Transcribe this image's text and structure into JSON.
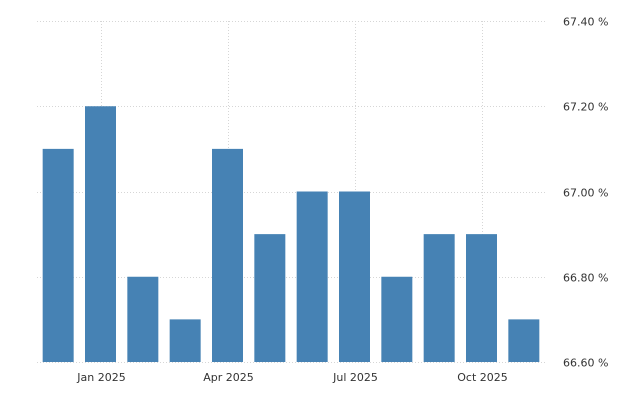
{
  "chart_data": {
    "type": "bar",
    "values": [
      67.1,
      67.2,
      66.8,
      66.7,
      67.1,
      66.9,
      67.0,
      67.0,
      66.8,
      66.9,
      66.9,
      66.7
    ],
    "ylim": [
      66.6,
      67.4
    ],
    "y_ticks": [
      66.6,
      66.8,
      67.0,
      67.2,
      67.4
    ],
    "y_tick_labels": [
      "66.60 %",
      "66.80 %",
      "67.00 %",
      "67.20 %",
      "67.40 %"
    ],
    "x_ticks": [
      {
        "label": "Jan 2025",
        "index": 1
      },
      {
        "label": "Apr 2025",
        "index": 4
      },
      {
        "label": "Jul 2025",
        "index": 7
      },
      {
        "label": "Oct 2025",
        "index": 10
      }
    ],
    "bar_color": "#4682b4",
    "grid": true
  }
}
